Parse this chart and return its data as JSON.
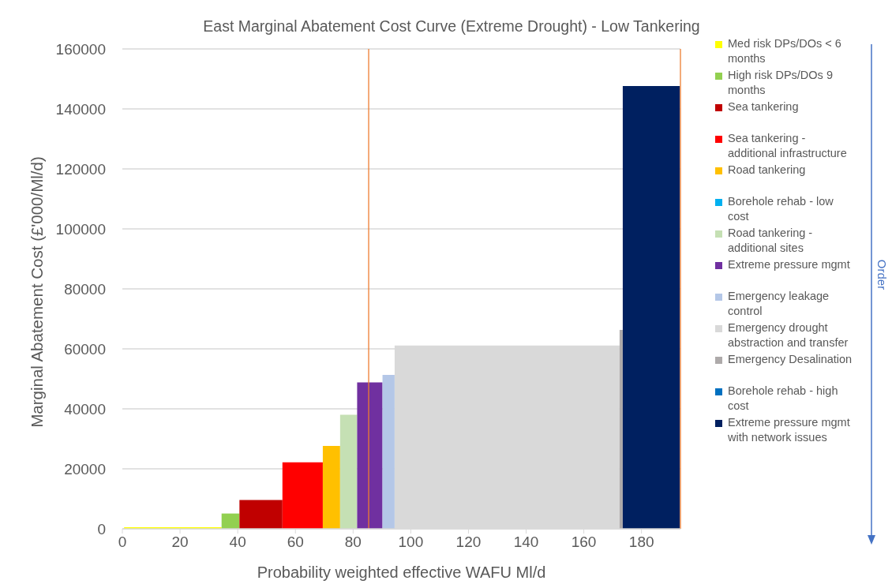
{
  "chart_data": {
    "type": "area",
    "title": "East Marginal Abatement Cost Curve (Extreme Drought) - Low Tankering",
    "xlabel": "Probability weighted effective WAFU Ml/d",
    "ylabel": "Marginal Abatement Cost (£'000/Ml/d)",
    "series": [
      {
        "name": "Med risk DPs/DOs < 6 months",
        "color": "#ffff00",
        "x": [
          0.6,
          34.4
        ],
        "values": [
          500,
          500
        ]
      },
      {
        "name": "High risk DPs/DOs 9 months",
        "color": "#92d050",
        "x": [
          34.4,
          40.6
        ],
        "values": [
          5100,
          5100
        ]
      },
      {
        "name": "Sea tankering",
        "color": "#c00000",
        "x": [
          40.6,
          55.5
        ],
        "values": [
          9600,
          9600
        ]
      },
      {
        "name": "Sea tankering - additional infrastructure",
        "color": "#ff0000",
        "x": [
          55.5,
          69.5
        ],
        "values": [
          22200,
          22200
        ]
      },
      {
        "name": "Road tankering",
        "color": "#ffc000",
        "x": [
          69.5,
          75.5
        ],
        "values": [
          27600,
          27600
        ]
      },
      {
        "name": "Borehole rehab - low cost",
        "color": "#00b0f0"
      },
      {
        "name": "Road tankering - additional sites",
        "color": "#c5e0b4",
        "x": [
          75.5,
          81.4
        ],
        "values": [
          38000,
          38000
        ]
      },
      {
        "name": "Extreme pressure mgmt",
        "color": "#7030a0",
        "x": [
          81.4,
          90.2
        ],
        "values": [
          48800,
          48800
        ]
      },
      {
        "name": "Emergency leakage control",
        "color": "#b4c7e7",
        "x": [
          90.2,
          94.4
        ],
        "values": [
          51300,
          51300
        ]
      },
      {
        "name": "Emergency drought abstraction and transfer",
        "color": "#d9d9d9",
        "x": [
          94.4,
          172.4
        ],
        "values": [
          61100,
          61100
        ]
      },
      {
        "name": "Emergency Desalination",
        "color": "#aeaaaa",
        "x": [
          172.4,
          173.5
        ],
        "values": [
          66300,
          66300
        ]
      },
      {
        "name": "Borehole rehab - high cost",
        "color": "#0070c0"
      },
      {
        "name": "Extreme pressure mgmt with network issues",
        "color": "#002060",
        "x": [
          173.5,
          193.3
        ],
        "values": [
          147600,
          147600
        ]
      }
    ],
    "xlim": [
      0,
      193.5
    ],
    "xticks": [
      0,
      20,
      40,
      60,
      80,
      100,
      120,
      140,
      160,
      180
    ],
    "ylim": [
      0,
      160000
    ],
    "yticks": [
      0,
      20000,
      40000,
      60000,
      80000,
      100000,
      120000,
      140000,
      160000
    ],
    "grid": "y",
    "legend": "right",
    "ref_lines": [
      {
        "axis": "x",
        "value": 85.4,
        "color": "#ed7d31"
      },
      {
        "axis": "x",
        "value": 193.5,
        "color": "#ed7d31"
      }
    ],
    "annotations": [
      "Order"
    ]
  }
}
